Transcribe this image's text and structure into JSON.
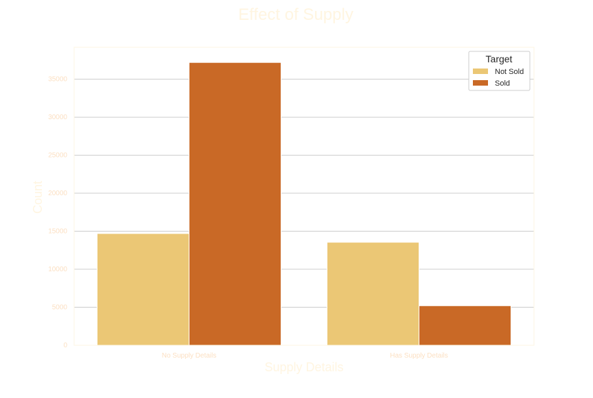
{
  "chart_data": {
    "type": "bar",
    "title": "Effect of Supply",
    "xlabel": "Supply Details",
    "ylabel": "Count",
    "categories": [
      "No Supply Details",
      "Has Supply Details"
    ],
    "series": [
      {
        "name": "Not Sold",
        "values": [
          14700,
          13550
        ]
      },
      {
        "name": "Sold",
        "values": [
          37200,
          5200
        ]
      }
    ],
    "ylim": [
      0,
      39200
    ],
    "yticks": [
      0,
      5000,
      10000,
      15000,
      20000,
      25000,
      30000,
      35000
    ],
    "ytick_labels": [
      "0",
      "5000",
      "10000",
      "15000",
      "20000",
      "25000",
      "30000",
      "35000"
    ],
    "grid": "horizontal",
    "legend": {
      "title": "Target",
      "position": "top-right"
    }
  },
  "colors": {
    "not_sold": "#EBC775",
    "sold": "#C96926",
    "text_faint": "#FFF5E1",
    "tick_text": "#FCE0C3",
    "grid": "#CCCCCC",
    "frame": "#FDF6E3",
    "legend_text": "#262626"
  }
}
